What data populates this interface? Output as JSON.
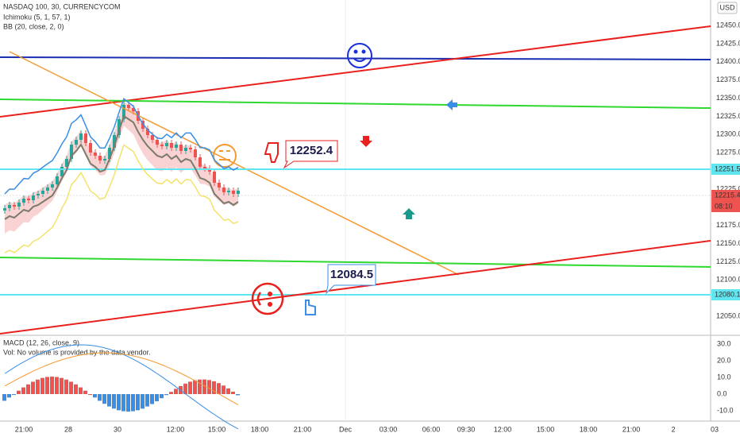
{
  "header": {
    "symbol": "NASDAQ 100, 30, CURRENCYCOM",
    "indicators": [
      "Ichimoku (5, 1, 57, 1)",
      "BB (20, close, 2, 0)"
    ]
  },
  "price_axis": {
    "currency": "USD",
    "labels": [
      "12450.0",
      "12425.0",
      "12400.0",
      "12375.0",
      "12350.0",
      "12325.0",
      "12300.0",
      "12275.0",
      "12225.0",
      "12175.0",
      "12150.0",
      "12125.0",
      "12100.0",
      "12050.0"
    ],
    "markers": [
      {
        "label": "12251.5",
        "kind": "line"
      },
      {
        "label": "12215.4",
        "kind": "last"
      },
      {
        "label": "08:10",
        "kind": "countdown"
      },
      {
        "label": "12080.1",
        "kind": "line"
      }
    ]
  },
  "annotations": {
    "upper": "12252.4",
    "lower": "12084.5"
  },
  "macd_pane": {
    "title": "MACD (12, 26, close, 9)",
    "note": "Vol: No volume is provided by the data vendor.",
    "labels": [
      "30.0",
      "20.0",
      "10.0",
      "0.0",
      "-10.0"
    ]
  },
  "time_axis": [
    "21:00",
    "28",
    "30",
    "12:00",
    "15:00",
    "18:00",
    "21:00",
    "Dec",
    "03:00",
    "06:00",
    "09:30",
    "12:00",
    "15:00",
    "18:00",
    "21:00",
    "2",
    "03"
  ]
}
